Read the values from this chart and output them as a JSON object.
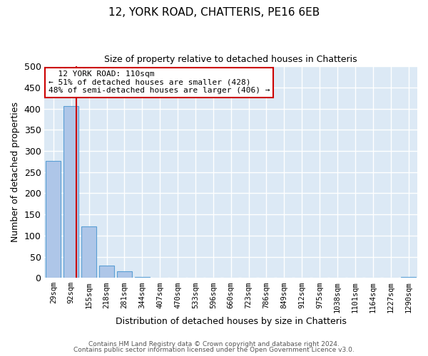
{
  "title": "12, YORK ROAD, CHATTERIS, PE16 6EB",
  "subtitle": "Size of property relative to detached houses in Chatteris",
  "xlabel": "Distribution of detached houses by size in Chatteris",
  "ylabel": "Number of detached properties",
  "bar_labels": [
    "29sqm",
    "92sqm",
    "155sqm",
    "218sqm",
    "281sqm",
    "344sqm",
    "407sqm",
    "470sqm",
    "533sqm",
    "596sqm",
    "660sqm",
    "723sqm",
    "786sqm",
    "849sqm",
    "912sqm",
    "975sqm",
    "1038sqm",
    "1101sqm",
    "1164sqm",
    "1227sqm",
    "1290sqm"
  ],
  "bar_values": [
    277,
    406,
    122,
    29,
    15,
    3,
    0,
    0,
    0,
    0,
    0,
    0,
    0,
    0,
    0,
    0,
    0,
    0,
    0,
    0,
    2
  ],
  "bar_color": "#aec6e8",
  "bar_edge_color": "#5a9fd4",
  "marker_label": "12 YORK ROAD: 110sqm",
  "annotation_line1": "← 51% of detached houses are smaller (428)",
  "annotation_line2": "48% of semi-detached houses are larger (406) →",
  "annotation_box_color": "#ffffff",
  "annotation_box_edge_color": "#cc0000",
  "vline_color": "#cc0000",
  "vline_x": 1.28,
  "ylim": [
    0,
    500
  ],
  "yticks": [
    0,
    50,
    100,
    150,
    200,
    250,
    300,
    350,
    400,
    450,
    500
  ],
  "background_color": "#ffffff",
  "plot_background_color": "#dce9f5",
  "grid_color": "#ffffff",
  "footer_line1": "Contains HM Land Registry data © Crown copyright and database right 2024.",
  "footer_line2": "Contains public sector information licensed under the Open Government Licence v3.0."
}
